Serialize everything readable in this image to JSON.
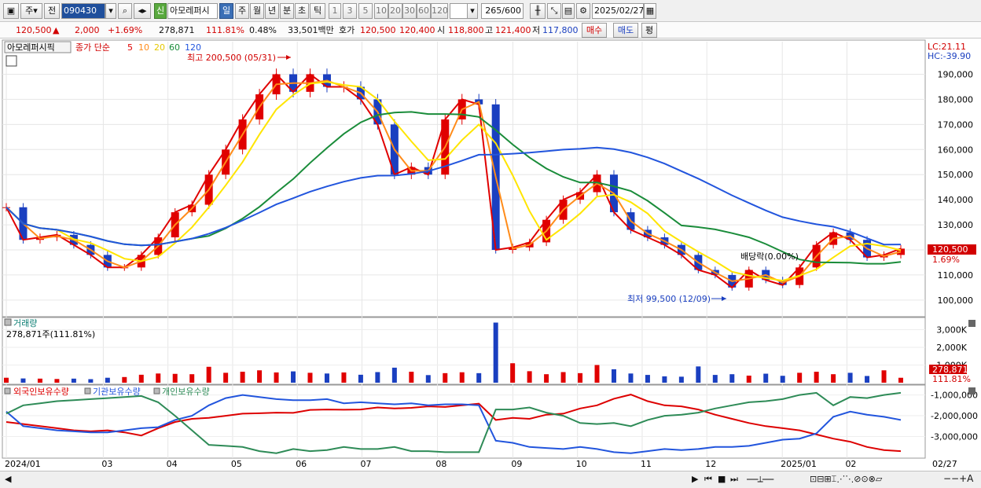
{
  "toolbar": {
    "type_label": "주",
    "prev_label": "전",
    "code": "090430",
    "new_badge": "신",
    "stock_name": "아모레퍼시",
    "periods": [
      "일",
      "주",
      "월",
      "년",
      "분",
      "초",
      "틱"
    ],
    "active_period": "일",
    "minute_options": [
      "1",
      "3",
      "5",
      "10",
      "20",
      "30",
      "60",
      "120"
    ],
    "count_value": "265",
    "count_total": "/600",
    "date_value": "2025/02/27"
  },
  "quote": {
    "price": "120,500",
    "change": "2,000",
    "change_pct": "+1.69%",
    "volume": "278,871",
    "volume_ratio": "111.81%",
    "turnover_pct": "0.48%",
    "amount": "33,501백만",
    "ask_label": "호가",
    "ask1": "120,500",
    "ask2": "120,400",
    "open_label": "시",
    "open": "118,800",
    "high_label": "고",
    "high": "121,400",
    "low_label": "저",
    "low": "117,800",
    "buy_label": "매수",
    "sell_label": "매도",
    "eval_label": "평"
  },
  "panels": {
    "price": {
      "tag": "아모레퍼시픽",
      "legend_prefix": "종가 단순",
      "ma_labels": [
        "5",
        "10",
        "20",
        "60",
        "120"
      ],
      "ma_colors": [
        "#e00000",
        "#ff8c1a",
        "#ffe500",
        "#1a8c3a",
        "#2255dd"
      ],
      "lc": "LC:21.11",
      "hc": "HC:-39.90",
      "high_note": "최고 200,500 (05/31)",
      "low_note": "최저 99,500 (12/09)",
      "dividend_note": "배당락(0.00%)",
      "last_price": "120,500",
      "last_pct": "1.69%"
    },
    "volume": {
      "title": "거래량",
      "subtitle": "278,871주(111.81%)",
      "last_value": "278,871",
      "last_pct": "111.81%"
    },
    "holdings": {
      "legend": [
        "외국인보유수량",
        "기관보유수량",
        "개인보유수량"
      ],
      "colors": [
        "#dd0000",
        "#2255dd",
        "#2e8b57"
      ]
    }
  },
  "chart_data": [
    {
      "type": "line",
      "subtype": "candlestick",
      "series": [
        {
          "name": "종가",
          "values": [
            137000,
            124000,
            125000,
            126000,
            122000,
            118000,
            113000,
            113000,
            118000,
            125000,
            135000,
            138000,
            150000,
            160000,
            172000,
            182000,
            190000,
            183000,
            190000,
            185000,
            185000,
            180000,
            170000,
            150000,
            153000,
            150000,
            172000,
            180000,
            178000,
            120000,
            121000,
            123000,
            132000,
            140000,
            143000,
            150000,
            135000,
            128000,
            125000,
            122000,
            118000,
            112000,
            110000,
            105000,
            112000,
            108000,
            106000,
            113000,
            122000,
            127000,
            124000,
            117000,
            118000,
            120500
          ]
        }
      ],
      "y_ticks": [
        100000,
        110000,
        120000,
        130000,
        140000,
        150000,
        160000,
        170000,
        180000,
        190000
      ],
      "ylim": [
        94000,
        203000
      ]
    },
    {
      "type": "bar",
      "series": [
        {
          "name": "거래량",
          "values": [
            280000,
            240000,
            230000,
            210000,
            230000,
            200000,
            280000,
            320000,
            450000,
            520000,
            500000,
            480000,
            900000,
            560000,
            620000,
            700000,
            580000,
            640000,
            560000,
            520000,
            580000,
            450000,
            600000,
            850000,
            620000,
            430000,
            540000,
            590000,
            540000,
            3400000,
            1100000,
            650000,
            480000,
            600000,
            540000,
            1000000,
            760000,
            520000,
            440000,
            360000,
            340000,
            920000,
            440000,
            480000,
            400000,
            510000,
            390000,
            560000,
            620000,
            480000,
            560000,
            380000,
            700000,
            278871
          ]
        }
      ],
      "y_ticks": [
        1000000,
        2000000,
        3000000
      ],
      "y_tick_labels": [
        "1,000K",
        "2,000K",
        "3,000K"
      ],
      "ylim": [
        0,
        3600000
      ]
    },
    {
      "type": "line",
      "series": [
        {
          "name": "외국인보유수량",
          "values": [
            -2300000,
            -2400000,
            -2500000,
            -2600000,
            -2700000,
            -2750000,
            -2700000,
            -2800000,
            -2950000,
            -2600000,
            -2300000,
            -2150000,
            -2100000,
            -2000000,
            -1900000,
            -1880000,
            -1850000,
            -1860000,
            -1720000,
            -1700000,
            -1710000,
            -1700000,
            -1600000,
            -1650000,
            -1620000,
            -1550000,
            -1580000,
            -1500000,
            -1420000,
            -2200000,
            -2100000,
            -2150000,
            -1950000,
            -1900000,
            -1650000,
            -1500000,
            -1180000,
            -980000,
            -1300000,
            -1500000,
            -1550000,
            -1700000,
            -1950000,
            -2150000,
            -2350000,
            -2500000,
            -2600000,
            -2700000,
            -2900000,
            -3100000,
            -3250000,
            -3500000,
            -3650000,
            -3700000
          ]
        },
        {
          "name": "기관보유수량",
          "values": [
            -1800000,
            -2500000,
            -2600000,
            -2700000,
            -2750000,
            -2800000,
            -2800000,
            -2700000,
            -2600000,
            -2550000,
            -2200000,
            -2000000,
            -1500000,
            -1150000,
            -1000000,
            -1100000,
            -1200000,
            -1250000,
            -1250000,
            -1200000,
            -1400000,
            -1350000,
            -1400000,
            -1450000,
            -1400000,
            -1500000,
            -1450000,
            -1450000,
            -1500000,
            -3200000,
            -3300000,
            -3500000,
            -3550000,
            -3600000,
            -3500000,
            -3600000,
            -3750000,
            -3800000,
            -3700000,
            -3600000,
            -3650000,
            -3600000,
            -3500000,
            -3500000,
            -3450000,
            -3300000,
            -3150000,
            -3100000,
            -2850000,
            -2050000,
            -1800000,
            -1950000,
            -2050000,
            -2200000
          ]
        },
        {
          "name": "개인보유수량",
          "values": [
            -1900000,
            -1500000,
            -1400000,
            -1300000,
            -1250000,
            -1200000,
            -1150000,
            -1100000,
            -1050000,
            -1350000,
            -2000000,
            -2700000,
            -3400000,
            -3450000,
            -3500000,
            -3700000,
            -3800000,
            -3600000,
            -3700000,
            -3650000,
            -3500000,
            -3600000,
            -3600000,
            -3500000,
            -3700000,
            -3700000,
            -3750000,
            -3750000,
            -3750000,
            -1700000,
            -1700000,
            -1600000,
            -1850000,
            -2000000,
            -2350000,
            -2400000,
            -2350000,
            -2500000,
            -2200000,
            -2000000,
            -1950000,
            -1850000,
            -1650000,
            -1500000,
            -1350000,
            -1300000,
            -1200000,
            -1000000,
            -900000,
            -1500000,
            -1100000,
            -1150000,
            -1000000,
            -900000
          ]
        }
      ],
      "y_ticks": [
        -3000000,
        -2000000,
        -1000000
      ],
      "y_tick_labels": [
        "-3,000,000",
        "-2,000,000",
        "-1,000,000"
      ],
      "ylim": [
        -4000000,
        -600000
      ]
    }
  ],
  "x_axis": {
    "labels": [
      "2024/01",
      "03",
      "04",
      "05",
      "06",
      "07",
      "08",
      "09",
      "10",
      "11",
      "12",
      "2025/01",
      "02"
    ],
    "positions_index": [
      0,
      9,
      15,
      21,
      27,
      33,
      40,
      47,
      53,
      59,
      65,
      72,
      78
    ],
    "total_index": 83,
    "last_label": "02/27"
  }
}
